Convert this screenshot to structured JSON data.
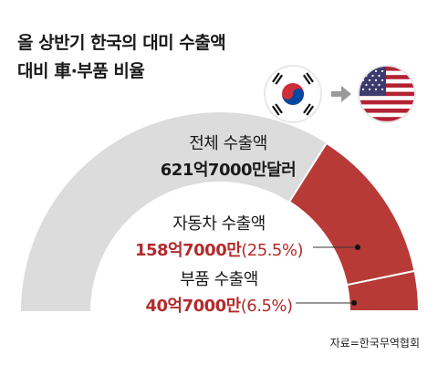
{
  "title": {
    "line1": "올 상반기 한국의 대미 수출액",
    "line2": "대비 車·부품 비율"
  },
  "flags": [
    "south-korea-flag-icon",
    "united-states-flag-icon"
  ],
  "colors": {
    "total": "#dcdcdc",
    "segment": "#b83a37",
    "text_red": "#b32b2b"
  },
  "chart_data": {
    "type": "pie",
    "shape": "semi-donut",
    "total": {
      "label": "전체 수출액",
      "value_text": "621억7000만달러",
      "value": 6217
    },
    "segments": [
      {
        "label": "자동차 수출액",
        "value_text": "158억7000만",
        "value": 1587,
        "percent": 25.5,
        "percent_text": "(25.5%)"
      },
      {
        "label": "부품 수출액",
        "value_text": "40억7000만",
        "value": 407,
        "percent": 6.5,
        "percent_text": "(6.5%)"
      }
    ],
    "unit": "억달러"
  },
  "source": "자료=한국무역협회"
}
